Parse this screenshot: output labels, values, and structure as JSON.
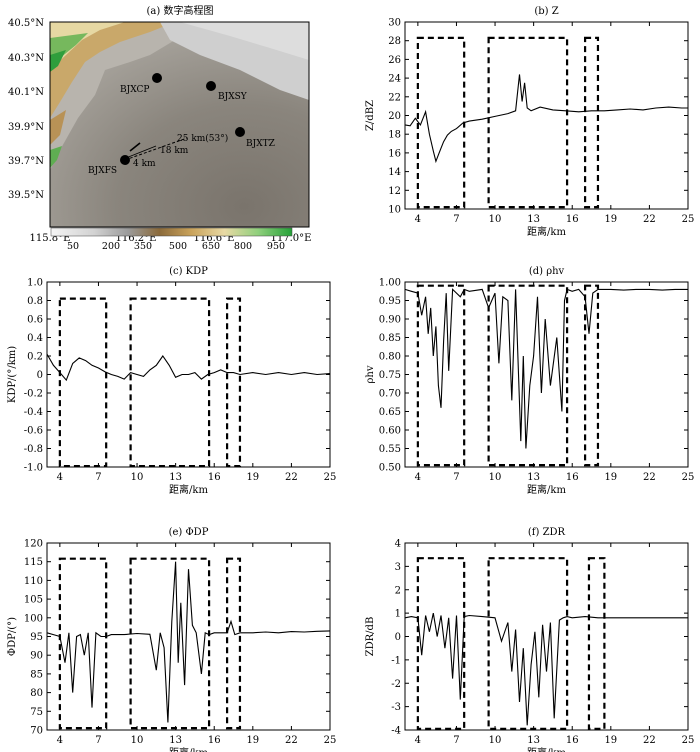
{
  "chart_data": [
    {
      "id": "a",
      "type": "map",
      "title": "(a) 数字高程图",
      "x_ticks": [
        "115.8°E",
        "116.2°E",
        "116.6°E",
        "117.0°E"
      ],
      "y_ticks": [
        "40.5°N",
        "40.3°N",
        "40.1°N",
        "39.9°N",
        "39.7°N",
        "39.5°N"
      ],
      "xlim": [
        115.8,
        117.1
      ],
      "ylim": [
        39.4,
        40.5
      ],
      "stations": [
        {
          "name": "BJXCP",
          "lon": 116.28,
          "lat": 40.17
        },
        {
          "name": "BJXSY",
          "lon": 116.61,
          "lat": 40.13
        },
        {
          "name": "BJXTZ",
          "lon": 116.8,
          "lat": 39.86
        },
        {
          "name": "BJXFS",
          "lon": 116.18,
          "lat": 39.7
        }
      ],
      "annotations": [
        "25 km(53°)",
        "18 km",
        "4 km"
      ],
      "colorbar": {
        "ticks": [
          "50",
          "200",
          "350",
          "500",
          "650",
          "800",
          "950"
        ]
      }
    },
    {
      "id": "b",
      "type": "line",
      "title": "(b) Z",
      "ylabel": "Z/dBZ",
      "xlabel": "距离/km",
      "xlim": [
        3,
        25
      ],
      "ylim": [
        10,
        30
      ],
      "xticks": [
        "4",
        "7",
        "10",
        "13",
        "16",
        "19",
        "22",
        "25"
      ],
      "yticks": [
        "10",
        "12",
        "14",
        "16",
        "18",
        "20",
        "22",
        "24",
        "26",
        "28",
        "30"
      ],
      "boxes": [
        [
          4,
          7.6
        ],
        [
          9.5,
          15.6
        ],
        [
          17,
          18
        ]
      ],
      "box_top": 28.3,
      "box_bottom": 10.2,
      "x": [
        3.0,
        3.4,
        3.8,
        4.2,
        4.6,
        4.9,
        5.2,
        5.4,
        5.6,
        5.8,
        6.0,
        6.3,
        6.6,
        7.0,
        7.5,
        8.0,
        9.0,
        10.0,
        11.0,
        11.6,
        11.9,
        12.1,
        12.3,
        12.5,
        12.8,
        13.5,
        14.5,
        15.5,
        16.5,
        17.5,
        18.5,
        19.5,
        20.5,
        21.5,
        22.5,
        23.5,
        24.5,
        25.0
      ],
      "y": [
        19.0,
        18.9,
        19.7,
        19.0,
        20.4,
        18.0,
        16.2,
        15.1,
        15.8,
        16.5,
        17.2,
        17.9,
        18.3,
        18.6,
        19.2,
        19.4,
        19.6,
        19.9,
        20.2,
        20.5,
        24.4,
        21.5,
        23.5,
        20.8,
        20.5,
        20.9,
        20.6,
        20.5,
        20.4,
        20.5,
        20.5,
        20.6,
        20.7,
        20.6,
        20.8,
        20.9,
        20.8,
        20.8
      ]
    },
    {
      "id": "c",
      "type": "line",
      "title": "(c) KDP",
      "ylabel": "KDP/(°/km)",
      "xlabel": "距离/km",
      "xlim": [
        3,
        25
      ],
      "ylim": [
        -1.0,
        1.0
      ],
      "xticks": [
        "4",
        "7",
        "10",
        "13",
        "16",
        "19",
        "22",
        "25"
      ],
      "yticks": [
        "-1.0",
        "-0.8",
        "-0.6",
        "-0.4",
        "-0.2",
        "0",
        "0.2",
        "0.4",
        "0.6",
        "0.8",
        "1.0"
      ],
      "boxes": [
        [
          4,
          7.6
        ],
        [
          9.5,
          15.6
        ],
        [
          17,
          18
        ]
      ],
      "box_top": 0.82,
      "box_bottom": -0.99,
      "x": [
        3.0,
        3.5,
        4.0,
        4.5,
        5.0,
        5.5,
        6.0,
        6.5,
        7.0,
        7.5,
        8.0,
        8.5,
        9.0,
        9.5,
        10.0,
        10.5,
        11.0,
        11.5,
        12.0,
        12.5,
        13.0,
        13.5,
        14.0,
        14.5,
        15.0,
        15.5,
        16.0,
        16.5,
        17.0,
        17.5,
        18.0,
        19.0,
        20.0,
        21.0,
        22.0,
        23.0,
        24.0,
        25.0
      ],
      "y": [
        0.22,
        0.1,
        0.02,
        -0.06,
        0.12,
        0.18,
        0.15,
        0.1,
        0.07,
        0.03,
        0.0,
        -0.02,
        -0.05,
        0.02,
        0.0,
        -0.02,
        0.05,
        0.1,
        0.2,
        0.1,
        -0.03,
        0.0,
        0.0,
        0.02,
        -0.05,
        0.0,
        0.02,
        0.05,
        0.02,
        0.02,
        0.0,
        0.02,
        0.0,
        0.02,
        0.0,
        0.02,
        0.0,
        0.01
      ]
    },
    {
      "id": "d",
      "type": "line",
      "title": "(d) ρhv",
      "ylabel": "ρhv",
      "xlabel": "距离/km",
      "xlim": [
        3,
        25
      ],
      "ylim": [
        0.5,
        1.0
      ],
      "xticks": [
        "4",
        "7",
        "10",
        "13",
        "16",
        "19",
        "22",
        "25"
      ],
      "yticks": [
        "0.50",
        "0.55",
        "0.60",
        "0.65",
        "0.70",
        "0.75",
        "0.80",
        "0.85",
        "0.90",
        "0.95",
        "1.00"
      ],
      "boxes": [
        [
          4,
          7.6
        ],
        [
          9.5,
          15.6
        ],
        [
          17,
          18
        ]
      ],
      "box_top": 0.99,
      "box_bottom": 0.505,
      "x": [
        3.0,
        3.5,
        4.0,
        4.3,
        4.6,
        4.8,
        5.0,
        5.2,
        5.4,
        5.6,
        5.8,
        6.0,
        6.2,
        6.4,
        6.7,
        7.0,
        7.3,
        7.6,
        8.0,
        9.0,
        9.5,
        10.0,
        10.3,
        10.6,
        11.0,
        11.3,
        11.6,
        12.0,
        12.2,
        12.4,
        12.7,
        13.0,
        13.3,
        13.6,
        13.9,
        14.3,
        14.8,
        15.2,
        15.4,
        15.6,
        16.0,
        16.5,
        17.0,
        17.3,
        17.6,
        18.0,
        19.0,
        20.0,
        21.0,
        22.0,
        23.0,
        24.0,
        25.0
      ],
      "y": [
        0.98,
        0.975,
        0.97,
        0.91,
        0.96,
        0.86,
        0.93,
        0.8,
        0.88,
        0.72,
        0.66,
        0.84,
        0.97,
        0.76,
        0.98,
        0.97,
        0.96,
        0.98,
        0.975,
        0.98,
        0.93,
        0.97,
        0.78,
        0.96,
        0.95,
        0.68,
        0.98,
        0.57,
        0.8,
        0.55,
        0.72,
        0.8,
        0.96,
        0.7,
        0.9,
        0.72,
        0.85,
        0.65,
        0.95,
        0.98,
        0.975,
        0.98,
        0.96,
        0.86,
        0.97,
        0.98,
        0.98,
        0.978,
        0.98,
        0.98,
        0.978,
        0.98,
        0.98
      ]
    },
    {
      "id": "e",
      "type": "line",
      "title": "(e) ΦDP",
      "ylabel": "ΦDP/(°)",
      "xlabel": "距离/km",
      "xlim": [
        3,
        25
      ],
      "ylim": [
        70,
        120
      ],
      "xticks": [
        "4",
        "7",
        "10",
        "13",
        "16",
        "19",
        "22",
        "25"
      ],
      "yticks": [
        "70",
        "75",
        "80",
        "85",
        "90",
        "95",
        "100",
        "105",
        "110",
        "115",
        "120"
      ],
      "boxes": [
        [
          4,
          7.6
        ],
        [
          9.5,
          15.6
        ],
        [
          17,
          18
        ]
      ],
      "box_top": 115.8,
      "box_bottom": 70.5,
      "x": [
        3.0,
        3.5,
        4.0,
        4.4,
        4.7,
        5.0,
        5.3,
        5.6,
        5.9,
        6.2,
        6.5,
        6.8,
        7.2,
        7.6,
        8.0,
        9.0,
        10.0,
        11.0,
        11.5,
        11.8,
        12.1,
        12.4,
        12.7,
        13.0,
        13.2,
        13.4,
        13.7,
        14.0,
        14.3,
        14.6,
        15.0,
        15.3,
        15.6,
        16.0,
        16.5,
        17.0,
        17.3,
        17.6,
        18.0,
        19.0,
        20.0,
        21.0,
        22.0,
        23.0,
        24.0,
        25.0
      ],
      "y": [
        96,
        95.5,
        95,
        88,
        96,
        80,
        95,
        95.5,
        90,
        96,
        76,
        96,
        95,
        95,
        95.5,
        95.5,
        95.8,
        95.6,
        86,
        96,
        92,
        72,
        99,
        115,
        88,
        104,
        82,
        113,
        98,
        96,
        85,
        96,
        95.5,
        96,
        96,
        96,
        99,
        95.5,
        96,
        96,
        96.2,
        96,
        96.3,
        96.2,
        96.4,
        96.5
      ]
    },
    {
      "id": "f",
      "type": "line",
      "title": "(f) ZDR",
      "ylabel": "ZDR/dB",
      "xlabel": "距离/km",
      "xlim": [
        3,
        25
      ],
      "ylim": [
        -4,
        4
      ],
      "xticks": [
        "4",
        "7",
        "10",
        "13",
        "16",
        "19",
        "22",
        "25"
      ],
      "yticks": [
        "-4",
        "-3",
        "-2",
        "-1",
        "0",
        "1",
        "2",
        "3",
        "4"
      ],
      "boxes": [
        [
          4,
          7.6
        ],
        [
          9.5,
          15.6
        ],
        [
          17.3,
          18.5
        ]
      ],
      "box_top": 3.35,
      "box_bottom": -3.95,
      "x": [
        3.0,
        3.5,
        4.0,
        4.3,
        4.6,
        4.9,
        5.2,
        5.5,
        5.8,
        6.1,
        6.4,
        6.7,
        7.0,
        7.3,
        7.6,
        8.0,
        9.0,
        10.0,
        10.5,
        11.0,
        11.3,
        11.6,
        11.9,
        12.2,
        12.5,
        12.8,
        13.1,
        13.4,
        13.7,
        14.0,
        14.3,
        14.6,
        15.0,
        15.3,
        15.6,
        16.0,
        17.0,
        18.0,
        19.0,
        20.0,
        21.0,
        22.0,
        23.0,
        24.0,
        25.0
      ],
      "y": [
        0.8,
        0.85,
        0.8,
        -0.8,
        0.9,
        0.2,
        1.0,
        0.0,
        0.9,
        -0.5,
        0.8,
        -1.8,
        0.9,
        -2.7,
        0.85,
        0.9,
        0.85,
        0.8,
        -0.2,
        0.6,
        -1.5,
        0.3,
        -2.8,
        -0.5,
        -3.8,
        -1.2,
        0.2,
        -2.6,
        0.5,
        -1.5,
        0.6,
        -3.5,
        0.7,
        0.8,
        0.85,
        0.8,
        0.85,
        0.8,
        0.8,
        0.8,
        0.8,
        0.8,
        0.8,
        0.8,
        0.8
      ]
    }
  ]
}
